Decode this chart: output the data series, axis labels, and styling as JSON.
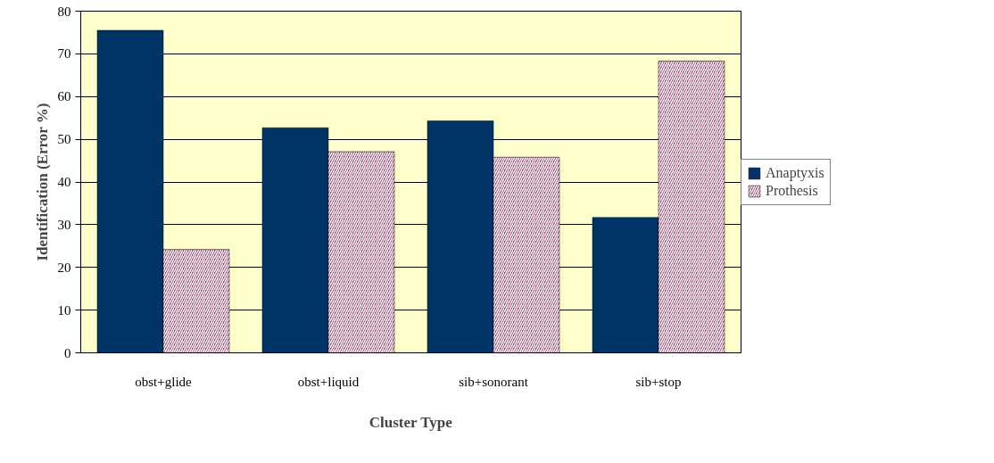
{
  "chart_data": {
    "type": "bar",
    "xlabel": "Cluster Type",
    "ylabel": "Identification (Error %)",
    "categories": [
      "obst+glide",
      "obst+liquid",
      "sib+sonorant",
      "sib+stop"
    ],
    "series": [
      {
        "name": "Anaptyxis",
        "color": "#003366",
        "values": [
          75.5,
          52.7,
          54.3,
          31.7
        ]
      },
      {
        "name": "Prothesis",
        "color": "#993366",
        "values": [
          24.2,
          47.1,
          45.8,
          68.3
        ]
      }
    ],
    "ylim": [
      0,
      80
    ],
    "yticks": [
      0,
      10,
      20,
      30,
      40,
      50,
      60,
      70,
      80
    ],
    "grid": "y",
    "legend": "right"
  }
}
